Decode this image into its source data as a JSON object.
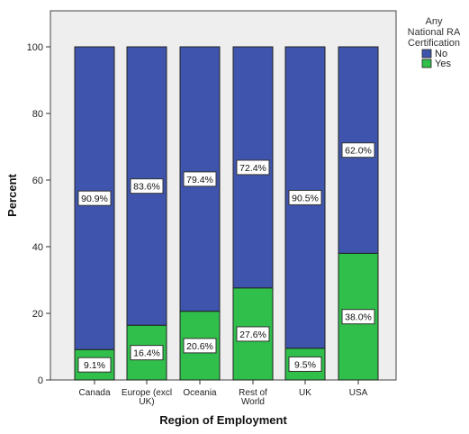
{
  "chart_data": {
    "type": "bar",
    "stacked": true,
    "percent_stacked": true,
    "title": "",
    "xlabel": "Region of Employment",
    "ylabel": "Percent",
    "ylim": [
      0,
      100
    ],
    "yticks": [
      "0",
      "20",
      "40",
      "60",
      "80",
      "100"
    ],
    "categories": [
      "Canada",
      "Europe (excl UK)",
      "Oceania",
      "Rest of World",
      "UK",
      "USA"
    ],
    "category_display_lines": [
      [
        "Canada"
      ],
      [
        "Europe (excl",
        "UK)"
      ],
      [
        "Oceania"
      ],
      [
        "Rest of",
        "World"
      ],
      [
        "UK"
      ],
      [
        "USA"
      ]
    ],
    "series": [
      {
        "name": "Yes",
        "color": "#2fbf4a",
        "values": [
          9.1,
          16.4,
          20.6,
          27.6,
          9.5,
          38.0
        ],
        "labels": [
          "9.1%",
          "16.4%",
          "20.6%",
          "27.6%",
          "9.5%",
          "38.0%"
        ]
      },
      {
        "name": "No",
        "color": "#3f55ad",
        "values": [
          90.9,
          83.6,
          79.4,
          72.4,
          90.5,
          62.0
        ],
        "labels": [
          "90.9%",
          "83.6%",
          "79.4%",
          "72.4%",
          "90.5%",
          "62.0%"
        ]
      }
    ],
    "legend": {
      "title_lines": [
        "Any",
        "National RA",
        "Certification"
      ],
      "placement": "top-right outside",
      "items": [
        {
          "label": "No",
          "color": "#3f55ad"
        },
        {
          "label": "Yes",
          "color": "#2fbf4a"
        }
      ]
    },
    "grid": false,
    "plot_background": "#eeeeee"
  }
}
